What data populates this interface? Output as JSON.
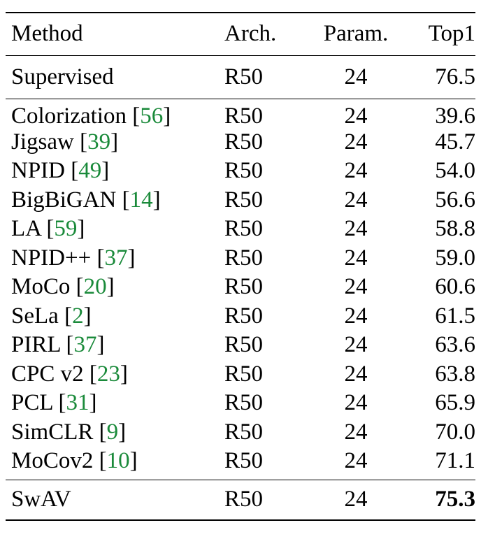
{
  "table": {
    "headers": {
      "method": "Method",
      "arch": "Arch.",
      "param": "Param.",
      "top1": "Top1"
    },
    "supervised": {
      "method": "Supervised",
      "arch": "R50",
      "param": "24",
      "top1": "76.5"
    },
    "rows": [
      {
        "method": "Colorization",
        "cite": "56",
        "arch": "R50",
        "param": "24",
        "top1": "39.6"
      },
      {
        "method": "Jigsaw",
        "cite": "39",
        "arch": "R50",
        "param": "24",
        "top1": "45.7"
      },
      {
        "method": "NPID",
        "cite": "49",
        "arch": "R50",
        "param": "24",
        "top1": "54.0"
      },
      {
        "method": "BigBiGAN",
        "cite": "14",
        "arch": "R50",
        "param": "24",
        "top1": "56.6"
      },
      {
        "method": "LA",
        "cite": "59",
        "arch": "R50",
        "param": "24",
        "top1": "58.8"
      },
      {
        "method": "NPID++",
        "cite": "37",
        "arch": "R50",
        "param": "24",
        "top1": "59.0"
      },
      {
        "method": "MoCo",
        "cite": "20",
        "arch": "R50",
        "param": "24",
        "top1": "60.6"
      },
      {
        "method": "SeLa",
        "cite": "2",
        "arch": "R50",
        "param": "24",
        "top1": "61.5"
      },
      {
        "method": "PIRL",
        "cite": "37",
        "arch": "R50",
        "param": "24",
        "top1": "63.6"
      },
      {
        "method": "CPC v2",
        "cite": "23",
        "arch": "R50",
        "param": "24",
        "top1": "63.8"
      },
      {
        "method": "PCL",
        "cite": "31",
        "arch": "R50",
        "param": "24",
        "top1": "65.9"
      },
      {
        "method": "SimCLR",
        "cite": "9",
        "arch": "R50",
        "param": "24",
        "top1": "70.0"
      },
      {
        "method": "MoCov2",
        "cite": "10",
        "arch": "R50",
        "param": "24",
        "top1": "71.1"
      }
    ],
    "ours": {
      "method": "SwAV",
      "arch": "R50",
      "param": "24",
      "top1": "75.3",
      "top1_bold": true
    }
  },
  "colors": {
    "citation": "#1a8a3a",
    "text": "#000000",
    "background": "#ffffff"
  }
}
